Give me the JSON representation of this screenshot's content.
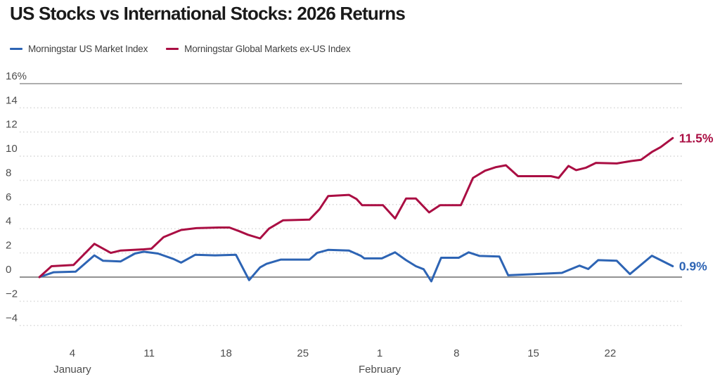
{
  "chart_data": {
    "type": "line",
    "title": "US Stocks vs International Stocks: 2026 Returns",
    "legend_position": "top-left",
    "grid": "horizontal, dotted; solid line at top (16%) and at zero",
    "x_unit": "day of year 2026 (Jan 1 = 1)",
    "x_axis": {
      "ticks": [
        {
          "day": 4,
          "label": "4"
        },
        {
          "day": 11,
          "label": "11"
        },
        {
          "day": 18,
          "label": "18"
        },
        {
          "day": 25,
          "label": "25"
        },
        {
          "day": 32,
          "label": "1"
        },
        {
          "day": 39,
          "label": "8"
        },
        {
          "day": 46,
          "label": "15"
        },
        {
          "day": 53,
          "label": "22"
        }
      ],
      "months": [
        {
          "day": 4,
          "label": "January"
        },
        {
          "day": 32,
          "label": "February"
        }
      ]
    },
    "y_axis": {
      "range": [
        -4,
        16
      ],
      "unit": "%",
      "ticks": [
        {
          "value": 16,
          "label": "16%"
        },
        {
          "value": 14,
          "label": "14"
        },
        {
          "value": 12,
          "label": "12"
        },
        {
          "value": 10,
          "label": "10"
        },
        {
          "value": 8,
          "label": "8"
        },
        {
          "value": 6,
          "label": "6"
        },
        {
          "value": 4,
          "label": "4"
        },
        {
          "value": 2,
          "label": "2"
        },
        {
          "value": 0,
          "label": "0"
        },
        {
          "value": -2,
          "label": "−2"
        },
        {
          "value": -4,
          "label": "−4"
        }
      ]
    },
    "series": [
      {
        "name": "Morningstar US Market Index",
        "color": "#2d64b4",
        "end_label": "0.9%",
        "final_value_pct": 0.9,
        "points": [
          [
            1,
            0
          ],
          [
            2.3,
            0.4
          ],
          [
            4.3,
            0.45
          ],
          [
            6,
            1.8
          ],
          [
            6.8,
            1.35
          ],
          [
            8.4,
            1.3
          ],
          [
            9.7,
            1.95
          ],
          [
            10.5,
            2.1
          ],
          [
            11.8,
            1.95
          ],
          [
            13.2,
            1.5
          ],
          [
            13.9,
            1.2
          ],
          [
            15.2,
            1.85
          ],
          [
            17,
            1.8
          ],
          [
            18.9,
            1.85
          ],
          [
            20.1,
            -0.25
          ],
          [
            21.1,
            0.8
          ],
          [
            21.7,
            1.1
          ],
          [
            23,
            1.45
          ],
          [
            25.6,
            1.45
          ],
          [
            26.3,
            2
          ],
          [
            27.3,
            2.25
          ],
          [
            29.2,
            2.2
          ],
          [
            30.3,
            1.75
          ],
          [
            30.6,
            1.55
          ],
          [
            32.2,
            1.55
          ],
          [
            33.4,
            2.05
          ],
          [
            34.4,
            1.4
          ],
          [
            35.3,
            0.9
          ],
          [
            36,
            0.65
          ],
          [
            36.7,
            -0.35
          ],
          [
            37.6,
            1.6
          ],
          [
            39.2,
            1.6
          ],
          [
            40.1,
            2.05
          ],
          [
            41.1,
            1.75
          ],
          [
            42.9,
            1.7
          ],
          [
            43.7,
            0.15
          ],
          [
            48.6,
            0.35
          ],
          [
            50.2,
            0.95
          ],
          [
            51,
            0.67
          ],
          [
            51.9,
            1.4
          ],
          [
            53.6,
            1.35
          ],
          [
            54.8,
            0.25
          ],
          [
            56.8,
            1.77
          ],
          [
            58.7,
            0.9
          ]
        ]
      },
      {
        "name": "Morningstar Global Markets ex-US Index",
        "color": "#aa0e43",
        "end_label": "11.5%",
        "final_value_pct": 11.5,
        "points": [
          [
            1,
            0
          ],
          [
            2.1,
            0.9
          ],
          [
            4.1,
            1
          ],
          [
            6,
            2.75
          ],
          [
            7.5,
            2
          ],
          [
            8.4,
            2.2
          ],
          [
            10.5,
            2.3
          ],
          [
            11.2,
            2.35
          ],
          [
            12.3,
            3.3
          ],
          [
            13.9,
            3.9
          ],
          [
            15.3,
            4.05
          ],
          [
            17.3,
            4.1
          ],
          [
            18.3,
            4.1
          ],
          [
            19.2,
            3.8
          ],
          [
            20,
            3.5
          ],
          [
            21.1,
            3.2
          ],
          [
            21.9,
            4
          ],
          [
            23.2,
            4.7
          ],
          [
            25.6,
            4.75
          ],
          [
            26.5,
            5.6
          ],
          [
            27.3,
            6.7
          ],
          [
            29.2,
            6.8
          ],
          [
            29.9,
            6.45
          ],
          [
            30.4,
            5.95
          ],
          [
            32.3,
            5.95
          ],
          [
            33.4,
            4.85
          ],
          [
            34.4,
            6.5
          ],
          [
            35.3,
            6.5
          ],
          [
            36.5,
            5.35
          ],
          [
            37.5,
            5.95
          ],
          [
            39.4,
            5.95
          ],
          [
            40.5,
            8.2
          ],
          [
            41.6,
            8.8
          ],
          [
            42.6,
            9.1
          ],
          [
            43.5,
            9.25
          ],
          [
            44.6,
            8.35
          ],
          [
            47.6,
            8.35
          ],
          [
            48.3,
            8.2
          ],
          [
            49.2,
            9.2
          ],
          [
            49.9,
            8.85
          ],
          [
            50.8,
            9.05
          ],
          [
            51.7,
            9.45
          ],
          [
            53.6,
            9.4
          ],
          [
            54.9,
            9.6
          ],
          [
            55.8,
            9.7
          ],
          [
            56.8,
            10.35
          ],
          [
            57.6,
            10.75
          ],
          [
            58.7,
            11.5
          ]
        ]
      }
    ],
    "style_colors": {
      "title": "#1a1a1a",
      "axis_text": "#4d4d4d",
      "grid_dotted": "#d8d8d8",
      "grid_top_solid": "#9b9b9b",
      "zero_line": "#6f6f6f"
    }
  }
}
